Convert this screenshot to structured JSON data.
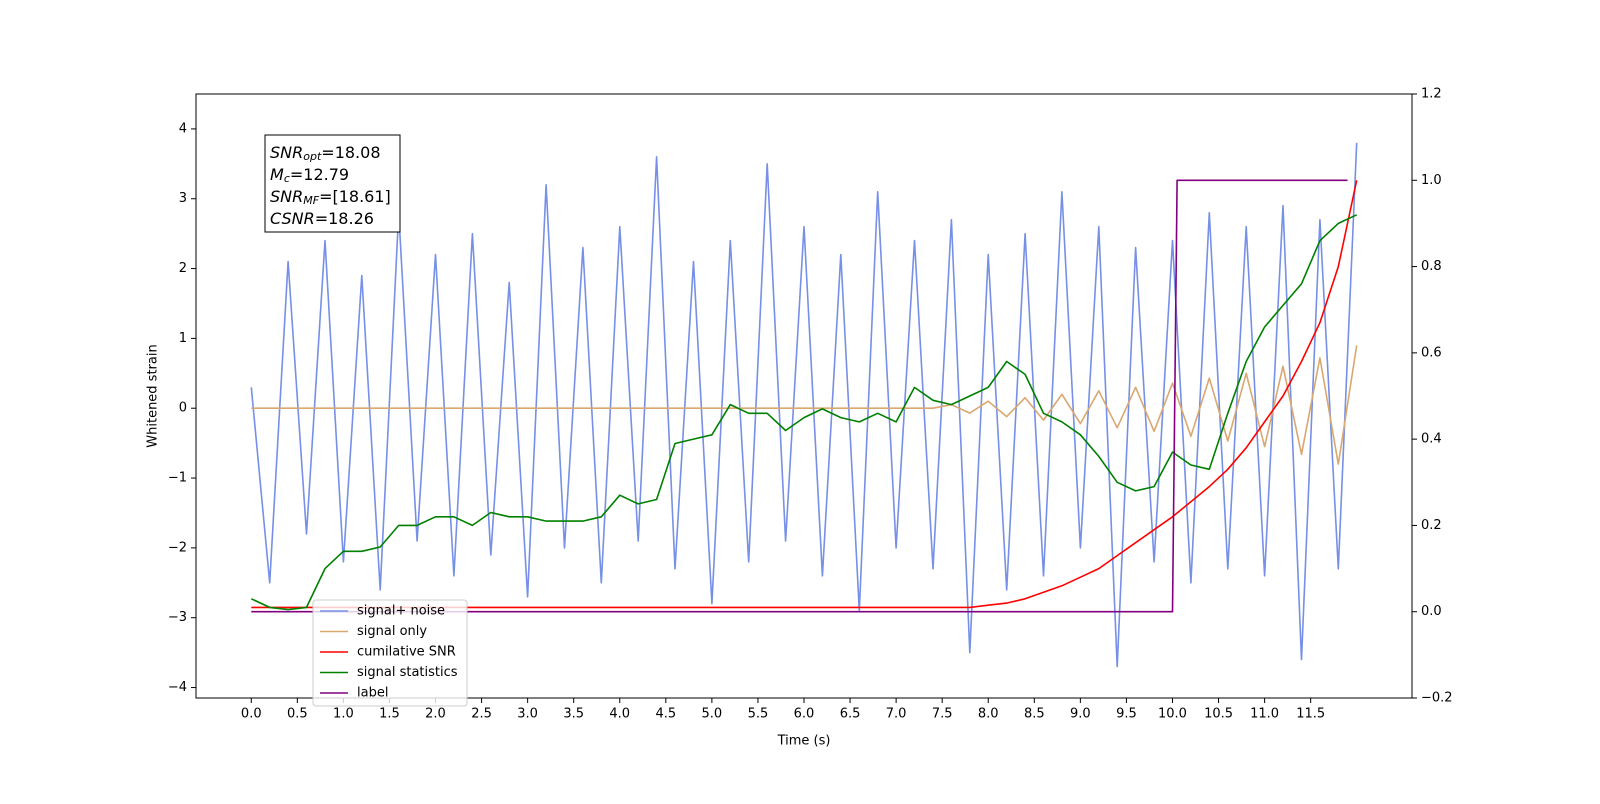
{
  "chart_data": {
    "type": "line",
    "xlabel": "Time (s)",
    "ylabel": "Whitened strain",
    "xlim": [
      -0.6,
      12.6
    ],
    "ylim": [
      -4.15,
      4.5
    ],
    "y2lim": [
      -0.2,
      1.2
    ],
    "xticks": [
      {
        "value": 0,
        "label": "0.0"
      },
      0.5,
      {
        "value": 1,
        "label": "1.0"
      },
      1.5,
      {
        "value": 2,
        "label": "2.0"
      },
      2.5,
      {
        "value": 3,
        "label": "3.0"
      },
      3.5,
      {
        "value": 4,
        "label": "4.0"
      },
      4.5,
      {
        "value": 5,
        "label": "5.0"
      },
      5.5,
      {
        "value": 6,
        "label": "6.0"
      },
      6.5,
      {
        "value": 7,
        "label": "7.0"
      },
      7.5,
      {
        "value": 8,
        "label": "8.0"
      },
      8.5,
      {
        "value": 9,
        "label": "9.0"
      },
      9.5,
      {
        "value": 10,
        "label": "10.0"
      },
      10.5,
      {
        "value": 11,
        "label": "11.0"
      },
      11.5
    ],
    "yticks": [
      {
        "value": -4,
        "label": "−4"
      },
      {
        "value": -3,
        "label": "−3"
      },
      {
        "value": -2,
        "label": "−2"
      },
      {
        "value": -1,
        "label": "−1"
      },
      0,
      1,
      2,
      3,
      4
    ],
    "y2ticks": [
      {
        "value": -0.2,
        "label": "−0.2"
      },
      {
        "value": 0,
        "label": "0.0"
      },
      0.2,
      0.4,
      0.6,
      0.8,
      {
        "value": 1,
        "label": "1.0"
      },
      1.2
    ],
    "x": [
      0,
      0.2,
      0.4,
      0.6,
      0.8,
      1.0,
      1.2,
      1.4,
      1.6,
      1.8,
      2.0,
      2.2,
      2.4,
      2.6,
      2.8,
      3.0,
      3.2,
      3.4,
      3.6,
      3.8,
      4.0,
      4.2,
      4.4,
      4.6,
      4.8,
      5.0,
      5.2,
      5.4,
      5.6,
      5.8,
      6.0,
      6.2,
      6.4,
      6.6,
      6.8,
      7.0,
      7.2,
      7.4,
      7.6,
      7.8,
      8.0,
      8.2,
      8.4,
      8.6,
      8.8,
      9.0,
      9.2,
      9.4,
      9.6,
      9.8,
      10.0,
      10.2,
      10.4,
      10.6,
      10.8,
      11.0,
      11.2,
      11.4,
      11.6,
      11.8,
      12.0
    ],
    "series": [
      {
        "name": "signal+ noise",
        "color": "#7590e6",
        "axis": "y",
        "values": [
          0.3,
          -2.5,
          2.1,
          -1.8,
          2.4,
          -2.2,
          1.9,
          -2.6,
          2.8,
          -1.9,
          2.2,
          -2.4,
          2.5,
          -2.1,
          1.8,
          -2.7,
          3.2,
          -2.0,
          2.3,
          -2.5,
          2.6,
          -1.9,
          3.6,
          -2.3,
          2.1,
          -2.8,
          2.4,
          -2.2,
          3.5,
          -1.9,
          2.6,
          -2.4,
          2.2,
          -2.9,
          3.1,
          -2.0,
          2.4,
          -2.3,
          2.7,
          -3.5,
          2.2,
          -2.6,
          2.5,
          -2.4,
          3.1,
          -2.0,
          2.6,
          -3.7,
          2.3,
          -2.2,
          2.4,
          -2.5,
          2.8,
          -2.3,
          2.6,
          -2.4,
          2.9,
          -3.6,
          2.7,
          -2.3,
          3.8
        ]
      },
      {
        "name": "signal only",
        "color": "#d9a870",
        "axis": "y",
        "values": [
          0,
          0,
          0,
          0,
          0,
          0,
          0,
          0,
          0,
          0,
          0,
          0,
          0,
          0,
          0,
          0,
          0,
          0,
          0,
          0,
          0,
          0,
          0,
          0,
          0,
          0,
          0,
          0,
          0,
          0,
          0,
          0,
          0,
          0,
          0,
          0,
          0,
          0,
          0.05,
          -0.07,
          0.1,
          -0.12,
          0.15,
          -0.17,
          0.2,
          -0.22,
          0.25,
          -0.28,
          0.3,
          -0.33,
          0.36,
          -0.4,
          0.43,
          -0.47,
          0.5,
          -0.55,
          0.6,
          -0.66,
          0.72,
          -0.8,
          0.9
        ]
      },
      {
        "name": "cumilative SNR",
        "color": "#ff0000",
        "axis": "y2",
        "values": [
          0.01,
          0.01,
          0.01,
          0.01,
          0.01,
          0.01,
          0.01,
          0.01,
          0.01,
          0.01,
          0.01,
          0.01,
          0.01,
          0.01,
          0.01,
          0.01,
          0.01,
          0.01,
          0.01,
          0.01,
          0.01,
          0.01,
          0.01,
          0.01,
          0.01,
          0.01,
          0.01,
          0.01,
          0.01,
          0.01,
          0.01,
          0.01,
          0.01,
          0.01,
          0.01,
          0.01,
          0.01,
          0.01,
          0.01,
          0.01,
          0.015,
          0.02,
          0.03,
          0.045,
          0.06,
          0.08,
          0.1,
          0.13,
          0.16,
          0.19,
          0.22,
          0.255,
          0.29,
          0.33,
          0.38,
          0.44,
          0.5,
          0.58,
          0.67,
          0.8,
          1.0
        ]
      },
      {
        "name": "signal statistics",
        "color": "#008000",
        "axis": "y2",
        "values": [
          0.03,
          0.01,
          0.005,
          0.01,
          0.1,
          0.14,
          0.14,
          0.15,
          0.2,
          0.2,
          0.22,
          0.22,
          0.2,
          0.23,
          0.22,
          0.22,
          0.21,
          0.21,
          0.21,
          0.22,
          0.27,
          0.25,
          0.26,
          0.39,
          0.4,
          0.41,
          0.48,
          0.46,
          0.46,
          0.42,
          0.45,
          0.47,
          0.45,
          0.44,
          0.46,
          0.44,
          0.52,
          0.49,
          0.48,
          0.5,
          0.52,
          0.58,
          0.55,
          0.46,
          0.44,
          0.41,
          0.36,
          0.3,
          0.28,
          0.29,
          0.37,
          0.34,
          0.33,
          0.46,
          0.58,
          0.66,
          0.71,
          0.76,
          0.86,
          0.9,
          0.92
        ]
      },
      {
        "name": "label",
        "color": "#800080",
        "axis": "y2",
        "x": [
          0,
          10.0,
          10.05,
          11.9
        ],
        "values": [
          0,
          0,
          1,
          1
        ]
      }
    ],
    "annotation": [
      {
        "main": "SNR",
        "sub": "opt",
        "rest": "=18.08"
      },
      {
        "main": "M",
        "sub": "c",
        "rest": "=12.79"
      },
      {
        "main": "SNR",
        "sub": "MF",
        "rest": "=[18.61]"
      },
      {
        "main": "CSNR",
        "sub": "",
        "rest": "=18.26"
      }
    ],
    "legend": "lower left"
  }
}
